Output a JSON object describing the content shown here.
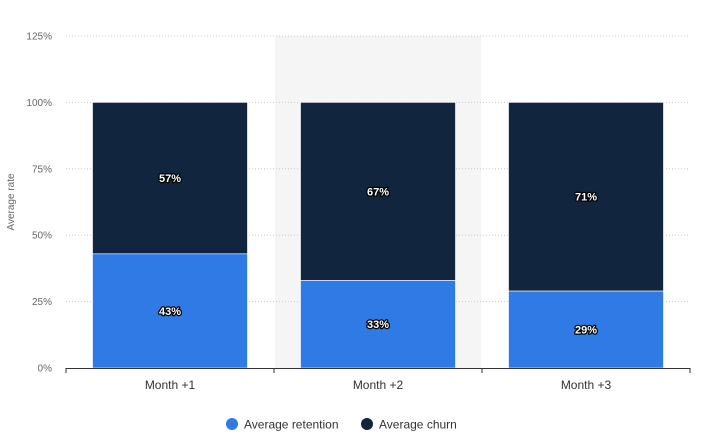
{
  "chart_data": {
    "type": "bar",
    "stacked": true,
    "categories": [
      "Month +1",
      "Month +2",
      "Month +3"
    ],
    "series": [
      {
        "name": "Average retention",
        "values": [
          43,
          33,
          29
        ],
        "color": "#2f7ae5",
        "labels": [
          "43%",
          "33%",
          "29%"
        ]
      },
      {
        "name": "Average churn",
        "values": [
          57,
          67,
          71
        ],
        "color": "#11253f",
        "labels": [
          "57%",
          "67%",
          "71%"
        ]
      }
    ],
    "ylabel": "Average rate",
    "ylim": [
      0,
      125
    ],
    "yticks": [
      0,
      25,
      50,
      75,
      100,
      125
    ],
    "ytick_labels": [
      "0%",
      "25%",
      "50%",
      "75%",
      "100%",
      "125%"
    ],
    "grid": true,
    "highlighted_category": "Month +2",
    "legend_position": "bottom-center"
  }
}
